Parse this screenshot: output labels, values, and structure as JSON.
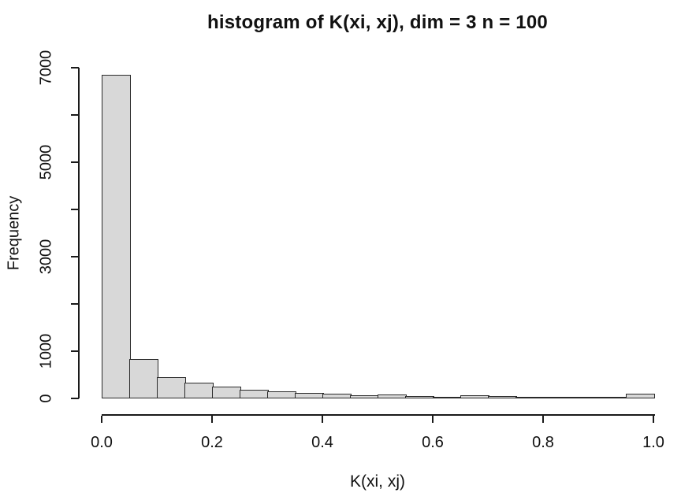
{
  "chart_data": {
    "type": "bar",
    "subtype": "histogram",
    "title": "histogram of K(xi, xj), dim = 3 n = 100",
    "xlabel": "K(xi, xj)",
    "ylabel": "Frequency",
    "bin_start": 0.0,
    "bin_width": 0.05,
    "bin_edges": [
      0.0,
      0.05,
      0.1,
      0.15,
      0.2,
      0.25,
      0.3,
      0.35,
      0.4,
      0.45,
      0.5,
      0.55,
      0.6,
      0.65,
      0.7,
      0.75,
      0.8,
      0.85,
      0.9,
      0.95,
      1.0
    ],
    "values": [
      6850,
      830,
      450,
      335,
      245,
      185,
      145,
      110,
      95,
      65,
      80,
      45,
      30,
      60,
      42,
      35,
      25,
      20,
      12,
      100
    ],
    "xlim": [
      0.0,
      1.0
    ],
    "ylim": [
      0,
      7000
    ],
    "x_ticks": [
      0.0,
      0.2,
      0.4,
      0.6,
      0.8,
      1.0
    ],
    "x_tick_labels": [
      "0.0",
      "0.2",
      "0.4",
      "0.6",
      "0.8",
      "1.0"
    ],
    "y_ticks": [
      0,
      1000,
      2000,
      3000,
      4000,
      5000,
      6000,
      7000
    ],
    "y_tick_labels": [
      "0",
      "1000",
      "",
      "3000",
      "",
      "5000",
      "",
      "7000"
    ],
    "grid": false,
    "legend_position": "none",
    "colors": {
      "bar_fill": "#d8d8d8",
      "bar_border": "#2a2a2a",
      "axis": "#1a1a1a",
      "text": "#111111",
      "background": "#ffffff"
    }
  }
}
